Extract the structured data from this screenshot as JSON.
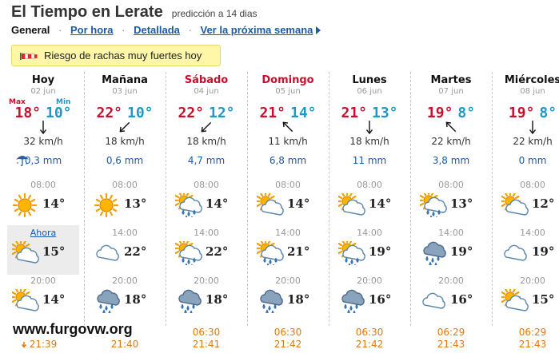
{
  "header": {
    "title": "El Tiempo en Lerate",
    "subtitle": "predicción a 14 dias"
  },
  "nav": [
    {
      "label": "General",
      "active": true
    },
    {
      "label": "Por hora",
      "active": false
    },
    {
      "label": "Detallada",
      "active": false
    },
    {
      "label": "Ver la próxima semana",
      "active": false
    }
  ],
  "alert": {
    "text": "Riesgo de rachas muy fuertes hoy",
    "icon": "windsock-icon"
  },
  "labels": {
    "max": "Max",
    "min": "Min"
  },
  "watermark": "www.furgovw.org",
  "colors": {
    "max": "#c8102e",
    "min": "#1a9ac8",
    "link": "#1a5aa6",
    "sun_time": "#e07a10",
    "alert_bg": "#fff6a8"
  },
  "days": [
    {
      "name": "Hoy",
      "date": "02 jun",
      "weekend": false,
      "max": "18°",
      "min": "10°",
      "wind_dir": "S",
      "wind": "32 km/h",
      "rain": "0,3 mm",
      "slots": [
        {
          "time": "08:00",
          "icon": "sun",
          "temp": "14°"
        },
        {
          "time": "Ahora",
          "icon": "sun-cloud",
          "temp": "15°",
          "now": true
        },
        {
          "time": "20:00",
          "icon": "sun-cloud",
          "temp": "14°"
        }
      ],
      "sunrise": "",
      "sunset": "21:39"
    },
    {
      "name": "Mañana",
      "date": "03 jun",
      "weekend": false,
      "max": "22°",
      "min": "10°",
      "wind_dir": "SW",
      "wind": "18 km/h",
      "rain": "0,6 mm",
      "slots": [
        {
          "time": "08:00",
          "icon": "sun",
          "temp": "13°"
        },
        {
          "time": "14:00",
          "icon": "cloud",
          "temp": "22°"
        },
        {
          "time": "20:00",
          "icon": "rain-cloud",
          "temp": "18°"
        }
      ],
      "sunrise": "",
      "sunset": "21:40"
    },
    {
      "name": "Sábado",
      "date": "04 jun",
      "weekend": true,
      "max": "22°",
      "min": "12°",
      "wind_dir": "SW",
      "wind": "18 km/h",
      "rain": "4,7 mm",
      "slots": [
        {
          "time": "08:00",
          "icon": "sun-cloud-rain",
          "temp": "14°"
        },
        {
          "time": "14:00",
          "icon": "sun-cloud-rain",
          "temp": "22°"
        },
        {
          "time": "20:00",
          "icon": "rain-cloud",
          "temp": "18°"
        }
      ],
      "sunrise": "06:30",
      "sunset": "21:41"
    },
    {
      "name": "Domingo",
      "date": "05 jun",
      "weekend": true,
      "max": "21°",
      "min": "14°",
      "wind_dir": "NW",
      "wind": "11 km/h",
      "rain": "6,8 mm",
      "slots": [
        {
          "time": "08:00",
          "icon": "sun-cloud",
          "temp": "14°"
        },
        {
          "time": "14:00",
          "icon": "sun-cloud-rain",
          "temp": "21°"
        },
        {
          "time": "20:00",
          "icon": "rain-cloud",
          "temp": "18°"
        }
      ],
      "sunrise": "06:30",
      "sunset": "21:42"
    },
    {
      "name": "Lunes",
      "date": "06 jun",
      "weekend": false,
      "max": "21°",
      "min": "13°",
      "wind_dir": "S",
      "wind": "18 km/h",
      "rain": "11 mm",
      "slots": [
        {
          "time": "08:00",
          "icon": "sun-cloud",
          "temp": "14°"
        },
        {
          "time": "14:00",
          "icon": "sun-cloud-rain",
          "temp": "19°"
        },
        {
          "time": "20:00",
          "icon": "rain-cloud",
          "temp": "16°"
        }
      ],
      "sunrise": "06:30",
      "sunset": "21:42"
    },
    {
      "name": "Martes",
      "date": "07 jun",
      "weekend": false,
      "max": "19°",
      "min": "8°",
      "wind_dir": "NW",
      "wind": "22 km/h",
      "rain": "3,8 mm",
      "slots": [
        {
          "time": "08:00",
          "icon": "sun-cloud-rain",
          "temp": "13°"
        },
        {
          "time": "14:00",
          "icon": "rain-cloud",
          "temp": "19°"
        },
        {
          "time": "20:00",
          "icon": "cloud",
          "temp": "16°"
        }
      ],
      "sunrise": "06:29",
      "sunset": "21:43"
    },
    {
      "name": "Miércoles",
      "date": "08 jun",
      "weekend": false,
      "max": "19°",
      "min": "8°",
      "wind_dir": "S",
      "wind": "22 km/h",
      "rain": "0 mm",
      "slots": [
        {
          "time": "08:00",
          "icon": "sun-cloud",
          "temp": "12°"
        },
        {
          "time": "14:00",
          "icon": "cloud",
          "temp": "19°"
        },
        {
          "time": "20:00",
          "icon": "sun-cloud",
          "temp": "15°"
        }
      ],
      "sunrise": "06:29",
      "sunset": "21:43"
    }
  ]
}
